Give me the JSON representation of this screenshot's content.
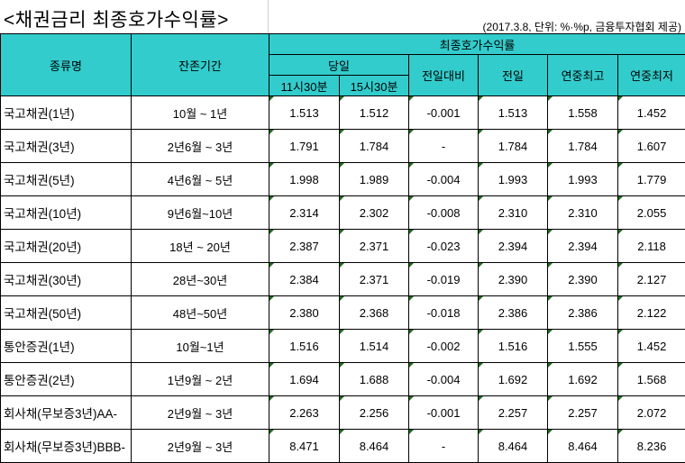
{
  "title": "<채권금리 최종호가수익률>",
  "note": "(2017.3.8, 단위: %·%p, 금융투자협회 제공)",
  "colors": {
    "header_bg": "#33cccc",
    "cell_marker": "#1e6b1e"
  },
  "headers": {
    "type": "종류명",
    "maturity": "잔존기간",
    "group": "최종호가수익률",
    "today": "당일",
    "t1130": "11시30분",
    "t1530": "15시30분",
    "change": "전일대비",
    "prev": "전일",
    "year_high": "연중최고",
    "year_low": "연중최저"
  },
  "rows": [
    {
      "name": "국고채권(1년)",
      "maturity": "10월 ~ 1년",
      "t1130": "1.513",
      "t1530": "1.512",
      "change": "-0.001",
      "prev": "1.513",
      "high": "1.558",
      "low": "1.452"
    },
    {
      "name": "국고채권(3년)",
      "maturity": "2년6월 ~ 3년",
      "t1130": "1.791",
      "t1530": "1.784",
      "change": "-",
      "prev": "1.784",
      "high": "1.784",
      "low": "1.607"
    },
    {
      "name": "국고채권(5년)",
      "maturity": "4년6월 ~ 5년",
      "t1130": "1.998",
      "t1530": "1.989",
      "change": "-0.004",
      "prev": "1.993",
      "high": "1.993",
      "low": "1.779"
    },
    {
      "name": "국고채권(10년)",
      "maturity": "9년6월~10년",
      "t1130": "2.314",
      "t1530": "2.302",
      "change": "-0.008",
      "prev": "2.310",
      "high": "2.310",
      "low": "2.055"
    },
    {
      "name": "국고채권(20년)",
      "maturity": "18년 ~ 20년",
      "t1130": "2.387",
      "t1530": "2.371",
      "change": "-0.023",
      "prev": "2.394",
      "high": "2.394",
      "low": "2.118"
    },
    {
      "name": "국고채권(30년)",
      "maturity": "28년~30년",
      "t1130": "2.384",
      "t1530": "2.371",
      "change": "-0.019",
      "prev": "2.390",
      "high": "2.390",
      "low": "2.127"
    },
    {
      "name": "국고채권(50년)",
      "maturity": "48년~50년",
      "t1130": "2.380",
      "t1530": "2.368",
      "change": "-0.018",
      "prev": "2.386",
      "high": "2.386",
      "low": "2.122"
    },
    {
      "name": "통안증권(1년)",
      "maturity": "10월~1년",
      "t1130": "1.516",
      "t1530": "1.514",
      "change": "-0.002",
      "prev": "1.516",
      "high": "1.555",
      "low": "1.452"
    },
    {
      "name": "통안증권(2년)",
      "maturity": "1년9월 ~ 2년",
      "t1130": "1.694",
      "t1530": "1.688",
      "change": "-0.004",
      "prev": "1.692",
      "high": "1.692",
      "low": "1.568"
    },
    {
      "name": "회사채(무보증3년)AA-",
      "maturity": "2년9월 ~ 3년",
      "t1130": "2.263",
      "t1530": "2.256",
      "change": "-0.001",
      "prev": "2.257",
      "high": "2.257",
      "low": "2.072"
    },
    {
      "name": "회사채(무보증3년)BBB-",
      "maturity": "2년9월 ~ 3년",
      "t1130": "8.471",
      "t1530": "8.464",
      "change": "-",
      "prev": "8.464",
      "high": "8.464",
      "low": "8.236"
    }
  ]
}
